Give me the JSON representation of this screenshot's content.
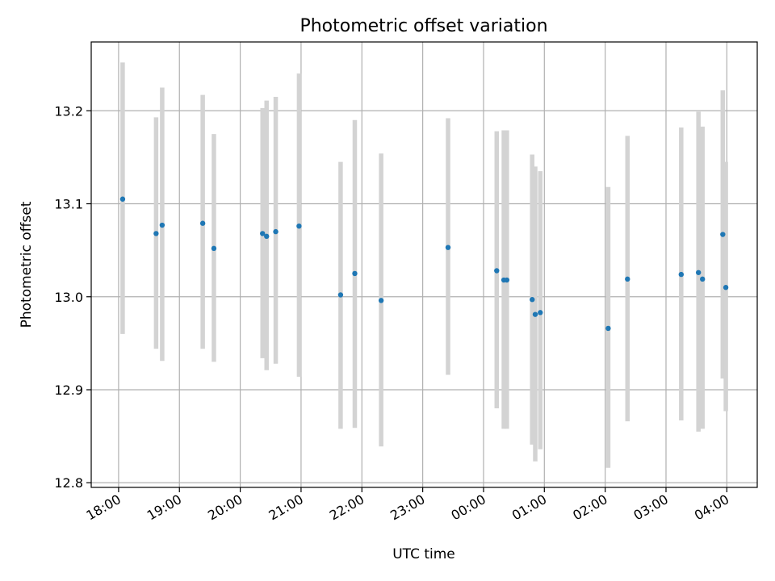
{
  "chart_data": {
    "type": "scatter",
    "title": "Photometric offset variation",
    "xlabel": "UTC time",
    "ylabel": "Photometric offset",
    "x_unit": "hours since 18:00 UTC on x-axis (labels show wall-clock time)",
    "xlim": [
      -0.45,
      10.5
    ],
    "ylim": [
      12.795,
      13.274
    ],
    "xticks": [
      "18:00",
      "19:00",
      "20:00",
      "21:00",
      "22:00",
      "23:00",
      "00:00",
      "01:00",
      "02:00",
      "03:00",
      "04:00"
    ],
    "yticks": [
      "12.8",
      "12.9",
      "13.0",
      "13.1",
      "13.2"
    ],
    "grid": true,
    "point_color": "#1f77b4",
    "errorbar_color": "#d3d3d3",
    "points": [
      {
        "t": "18:04",
        "y": 13.105,
        "lo": 12.96,
        "hi": 13.252
      },
      {
        "t": "18:37",
        "y": 13.068,
        "lo": 12.944,
        "hi": 13.193
      },
      {
        "t": "18:43",
        "y": 13.077,
        "lo": 12.931,
        "hi": 13.225
      },
      {
        "t": "19:23",
        "y": 13.079,
        "lo": 12.944,
        "hi": 13.217
      },
      {
        "t": "19:34",
        "y": 13.052,
        "lo": 12.93,
        "hi": 13.175
      },
      {
        "t": "20:22",
        "y": 13.068,
        "lo": 12.934,
        "hi": 13.203
      },
      {
        "t": "20:26",
        "y": 13.065,
        "lo": 12.921,
        "hi": 13.211
      },
      {
        "t": "20:35",
        "y": 13.07,
        "lo": 12.928,
        "hi": 13.215
      },
      {
        "t": "20:58",
        "y": 13.076,
        "lo": 12.914,
        "hi": 13.24
      },
      {
        "t": "21:39",
        "y": 13.002,
        "lo": 12.858,
        "hi": 13.145
      },
      {
        "t": "21:53",
        "y": 13.025,
        "lo": 12.859,
        "hi": 13.19
      },
      {
        "t": "22:19",
        "y": 12.996,
        "lo": 12.839,
        "hi": 13.154
      },
      {
        "t": "23:25",
        "y": 13.053,
        "lo": 12.916,
        "hi": 13.192
      },
      {
        "t": "00:13",
        "y": 13.028,
        "lo": 12.88,
        "hi": 13.178
      },
      {
        "t": "00:20",
        "y": 13.018,
        "lo": 12.858,
        "hi": 13.179
      },
      {
        "t": "00:23",
        "y": 13.018,
        "lo": 12.858,
        "hi": 13.179
      },
      {
        "t": "00:48",
        "y": 12.997,
        "lo": 12.841,
        "hi": 13.153
      },
      {
        "t": "00:51",
        "y": 12.981,
        "lo": 12.823,
        "hi": 13.14
      },
      {
        "t": "00:56",
        "y": 12.983,
        "lo": 12.836,
        "hi": 13.135
      },
      {
        "t": "02:03",
        "y": 12.966,
        "lo": 12.816,
        "hi": 13.118
      },
      {
        "t": "02:22",
        "y": 13.019,
        "lo": 12.866,
        "hi": 13.173
      },
      {
        "t": "03:15",
        "y": 13.024,
        "lo": 12.867,
        "hi": 13.182
      },
      {
        "t": "03:32",
        "y": 13.026,
        "lo": 12.855,
        "hi": 13.199
      },
      {
        "t": "03:36",
        "y": 13.019,
        "lo": 12.858,
        "hi": 13.183
      },
      {
        "t": "03:56",
        "y": 13.067,
        "lo": 12.912,
        "hi": 13.222
      },
      {
        "t": "03:59",
        "y": 13.01,
        "lo": 12.877,
        "hi": 13.145
      }
    ]
  }
}
